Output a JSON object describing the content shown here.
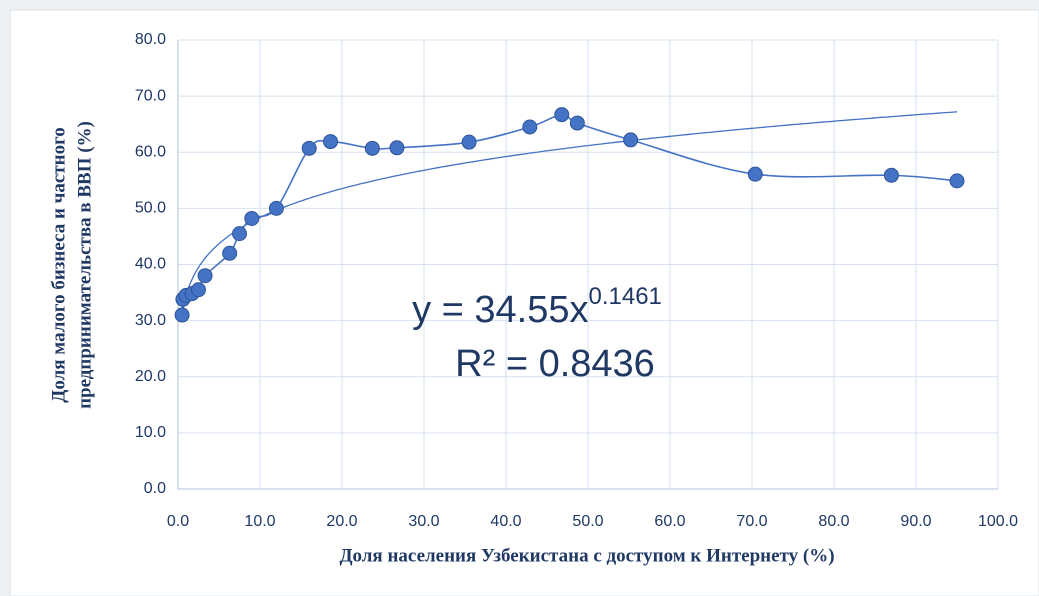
{
  "chart_data": {
    "type": "scatter_smooth",
    "x_label": "Доля населения Узбекистана с доступом к Интернету (%)",
    "y_label": [
      "Доля малого бизнеса и частного",
      "предпринимательства в ВВП  (%)"
    ],
    "x": [
      0.5,
      0.6,
      1.0,
      1.7,
      2.5,
      3.3,
      6.3,
      7.5,
      9.0,
      12.0,
      16.0,
      18.6,
      23.7,
      26.7,
      35.5,
      42.9,
      46.8,
      48.7,
      55.2,
      70.4,
      87.0,
      95.0
    ],
    "values": [
      31.0,
      33.8,
      34.5,
      34.8,
      35.5,
      38.0,
      42.0,
      45.5,
      48.2,
      50.0,
      60.7,
      61.9,
      60.7,
      60.8,
      61.8,
      64.5,
      66.7,
      65.2,
      62.2,
      56.1,
      55.9,
      54.9
    ],
    "color": "#4472c4",
    "trendline": {
      "type": "power",
      "a": 34.55,
      "b": 0.1461
    },
    "equation": {
      "base": "y = 34.55x",
      "exponent": "0.1461"
    },
    "r_squared": "R² = 0.8436",
    "xlim": [
      0,
      100
    ],
    "xticks": [
      {
        "value": 0,
        "label": "0.0"
      },
      {
        "value": 10,
        "label": "10.0"
      },
      {
        "value": 20,
        "label": "20.0"
      },
      {
        "value": 30,
        "label": "30.0"
      },
      {
        "value": 40,
        "label": "40.0"
      },
      {
        "value": 50,
        "label": "50.0"
      },
      {
        "value": 60,
        "label": "60.0"
      },
      {
        "value": 70,
        "label": "70.0"
      },
      {
        "value": 80,
        "label": "80.0"
      },
      {
        "value": 90,
        "label": "90.0"
      },
      {
        "value": 100,
        "label": "100.0"
      }
    ],
    "ylim": [
      0,
      80
    ],
    "yticks": [
      {
        "value": 0,
        "label": "0.0"
      },
      {
        "value": 10,
        "label": "10.0"
      },
      {
        "value": 20,
        "label": "20.0"
      },
      {
        "value": 30,
        "label": "30.0"
      },
      {
        "value": 40,
        "label": "40.0"
      },
      {
        "value": 50,
        "label": "50.0"
      },
      {
        "value": 60,
        "label": "60.0"
      },
      {
        "value": 70,
        "label": "70.0"
      },
      {
        "value": 80,
        "label": "80.0"
      }
    ],
    "grid": true
  }
}
